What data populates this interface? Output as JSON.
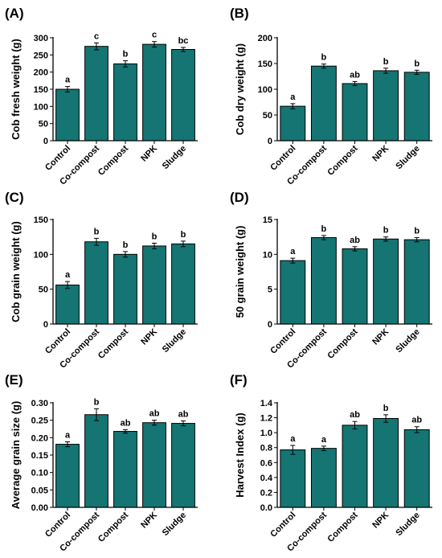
{
  "chart_data": [
    {
      "panel": "(A)",
      "type": "bar",
      "ylabel": "Cob fresh weight (g)",
      "ylim": [
        0,
        300
      ],
      "yticks": [
        0,
        50,
        100,
        150,
        200,
        250,
        300
      ],
      "categories": [
        "Control",
        "Co-compost",
        "Compost",
        "NPK",
        "Sludge"
      ],
      "values": [
        150,
        275,
        224,
        281,
        266
      ],
      "errors": [
        8,
        10,
        9,
        8,
        6
      ],
      "letters": [
        "a",
        "c",
        "b",
        "c",
        "bc"
      ],
      "color": "#147573"
    },
    {
      "panel": "(B)",
      "type": "bar",
      "ylabel": "Cob dry weight (g)",
      "ylim": [
        0,
        200
      ],
      "yticks": [
        0,
        50,
        100,
        150,
        200
      ],
      "categories": [
        "Control",
        "Co-compost",
        "Compost",
        "NPK",
        "Sludge"
      ],
      "values": [
        67,
        145,
        111,
        136,
        133
      ],
      "errors": [
        5,
        4,
        4,
        5,
        4
      ],
      "letters": [
        "a",
        "b",
        "ab",
        "b",
        "b"
      ],
      "color": "#147573"
    },
    {
      "panel": "(C)",
      "type": "bar",
      "ylabel": "Cob grain weight (g)",
      "ylim": [
        0,
        150
      ],
      "yticks": [
        0,
        50,
        100,
        150
      ],
      "categories": [
        "Control",
        "Co-compost",
        "Compost",
        "NPK",
        "Sludge"
      ],
      "values": [
        56,
        118,
        100,
        112,
        115
      ],
      "errors": [
        5,
        5,
        4,
        4,
        4
      ],
      "letters": [
        "a",
        "b",
        "b",
        "b",
        "b"
      ],
      "color": "#147573"
    },
    {
      "panel": "(D)",
      "type": "bar",
      "ylabel": "50 grain weight (g)",
      "ylim": [
        0,
        15
      ],
      "yticks": [
        0,
        5,
        10,
        15
      ],
      "categories": [
        "Control",
        "Co-compost",
        "Compost",
        "NPK",
        "Sludge"
      ],
      "values": [
        9.1,
        12.4,
        10.8,
        12.2,
        12.1
      ],
      "errors": [
        0.35,
        0.3,
        0.3,
        0.3,
        0.3
      ],
      "letters": [
        "a",
        "b",
        "ab",
        "b",
        "b"
      ],
      "color": "#147573"
    },
    {
      "panel": "(E)",
      "type": "bar",
      "ylabel": "Average grain size (g)",
      "ylim": [
        0,
        0.3
      ],
      "yticks": [
        "0.00",
        "0.05",
        "0.10",
        "0.15",
        "0.20",
        "0.25",
        "0.30"
      ],
      "categories": [
        "Control",
        "Co-compost",
        "Compost",
        "NPK",
        "Sludge"
      ],
      "values": [
        0.181,
        0.266,
        0.218,
        0.243,
        0.241
      ],
      "errors": [
        0.007,
        0.017,
        0.005,
        0.007,
        0.007
      ],
      "letters": [
        "a",
        "b",
        "ab",
        "ab",
        "ab"
      ],
      "color": "#147573"
    },
    {
      "panel": "(F)",
      "type": "bar",
      "ylabel": "Harvest Index (g)",
      "ylim": [
        0,
        1.4
      ],
      "yticks": [
        "0.0",
        "0.2",
        "0.4",
        "0.6",
        "0.8",
        "1.0",
        "1.2",
        "1.4"
      ],
      "categories": [
        "Control",
        "Co-compost",
        "Compost",
        "NPK",
        "Sludge"
      ],
      "values": [
        0.77,
        0.79,
        1.1,
        1.19,
        1.04
      ],
      "errors": [
        0.06,
        0.03,
        0.05,
        0.05,
        0.04
      ],
      "letters": [
        "a",
        "a",
        "ab",
        "b",
        "ab"
      ],
      "color": "#147573"
    }
  ]
}
